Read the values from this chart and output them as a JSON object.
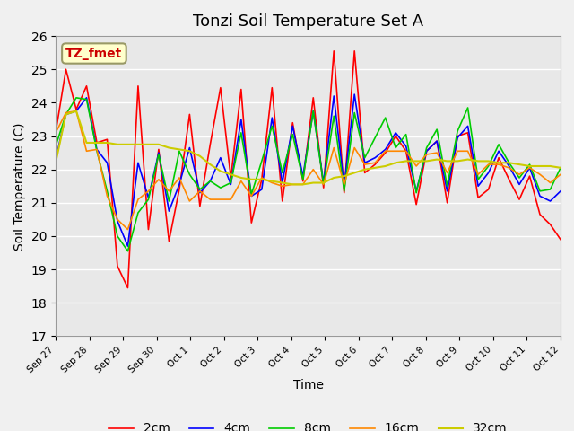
{
  "title": "Tonzi Soil Temperature Set A",
  "xlabel": "Time",
  "ylabel": "Soil Temperature (C)",
  "ylim": [
    17.0,
    26.0
  ],
  "annotation": "TZ_fmet",
  "x_labels": [
    "Sep 27",
    "Sep 28",
    "Sep 29",
    "Sep 30",
    "Oct 1",
    "Oct 2",
    "Oct 3",
    "Oct 4",
    "Oct 5",
    "Oct 6",
    "Oct 7",
    "Oct 8",
    "Oct 9",
    "Oct 10",
    "Oct 11",
    "Oct 12"
  ],
  "colors": {
    "2cm": "#FF0000",
    "4cm": "#0000FF",
    "8cm": "#00CC00",
    "16cm": "#FF8800",
    "32cm": "#CCCC00"
  },
  "legend_labels": [
    "2cm",
    "4cm",
    "8cm",
    "16cm",
    "32cm"
  ],
  "background_color": "#E8E8E8",
  "plot_bg_color": "#E8E8E8",
  "grid_color": "#FFFFFF",
  "title_fontsize": 13,
  "data_2cm": [
    23.1,
    25.0,
    23.8,
    24.5,
    22.8,
    22.9,
    19.1,
    18.45,
    24.5,
    20.2,
    22.6,
    19.85,
    21.4,
    23.65,
    20.9,
    22.75,
    24.45,
    21.75,
    24.4,
    20.4,
    21.7,
    24.45,
    21.05,
    23.4,
    21.65,
    24.15,
    21.45,
    25.55,
    21.3,
    25.55,
    21.9,
    22.15,
    22.5,
    23.0,
    22.55,
    20.95,
    22.55,
    22.85,
    21.0,
    23.0,
    23.1,
    21.15,
    21.4,
    22.35,
    21.7,
    21.1,
    21.8,
    20.65,
    20.35,
    19.9
  ],
  "data_4cm": [
    22.3,
    23.65,
    23.75,
    24.15,
    22.6,
    22.2,
    20.45,
    19.7,
    22.2,
    21.15,
    22.5,
    20.75,
    21.55,
    22.65,
    21.3,
    21.65,
    22.35,
    21.55,
    23.5,
    21.2,
    21.4,
    23.55,
    21.6,
    23.3,
    21.8,
    23.75,
    21.6,
    24.2,
    21.5,
    24.25,
    22.2,
    22.35,
    22.6,
    23.1,
    22.7,
    21.35,
    22.55,
    22.85,
    21.35,
    22.95,
    23.3,
    21.5,
    21.9,
    22.55,
    22.1,
    21.55,
    22.05,
    21.2,
    21.05,
    21.35
  ],
  "data_8cm": [
    22.7,
    23.65,
    24.15,
    24.1,
    22.55,
    21.35,
    20.0,
    19.55,
    20.7,
    21.1,
    22.45,
    21.05,
    22.55,
    21.85,
    21.4,
    21.65,
    21.45,
    21.6,
    23.1,
    21.25,
    22.25,
    23.3,
    21.9,
    23.05,
    21.7,
    23.75,
    21.55,
    23.6,
    21.35,
    23.7,
    22.35,
    22.95,
    23.55,
    22.65,
    23.05,
    21.3,
    22.65,
    23.2,
    21.5,
    23.15,
    23.85,
    21.7,
    22.1,
    22.75,
    22.2,
    21.75,
    22.15,
    21.35,
    21.4,
    22.05
  ],
  "data_16cm": [
    23.1,
    23.7,
    23.75,
    22.55,
    22.6,
    21.2,
    20.5,
    20.2,
    21.1,
    21.35,
    21.7,
    21.35,
    21.75,
    21.05,
    21.35,
    21.1,
    21.1,
    21.1,
    21.65,
    21.2,
    21.75,
    21.6,
    21.5,
    21.55,
    21.55,
    22.0,
    21.55,
    22.65,
    21.55,
    22.65,
    22.15,
    22.2,
    22.55,
    22.55,
    22.55,
    22.1,
    22.45,
    22.5,
    21.9,
    22.55,
    22.55,
    21.85,
    22.15,
    22.15,
    22.05,
    21.85,
    22.05,
    21.85,
    21.6,
    21.85
  ],
  "data_32cm": [
    22.2,
    23.65,
    23.75,
    22.8,
    22.8,
    22.8,
    22.75,
    22.75,
    22.75,
    22.75,
    22.75,
    22.65,
    22.6,
    22.55,
    22.4,
    22.15,
    21.95,
    21.85,
    21.75,
    21.7,
    21.7,
    21.65,
    21.6,
    21.55,
    21.55,
    21.6,
    21.6,
    21.75,
    21.8,
    21.9,
    22.0,
    22.05,
    22.1,
    22.2,
    22.25,
    22.25,
    22.25,
    22.3,
    22.25,
    22.25,
    22.3,
    22.25,
    22.25,
    22.2,
    22.2,
    22.15,
    22.1,
    22.1,
    22.1,
    22.05
  ]
}
